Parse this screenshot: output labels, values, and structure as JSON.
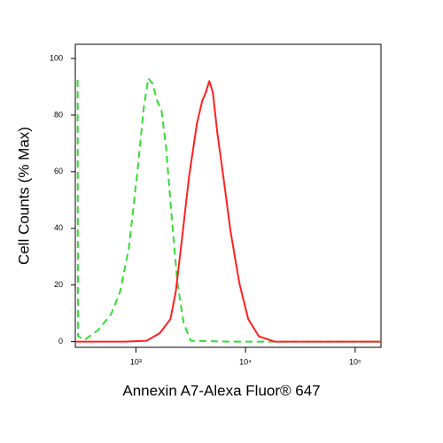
{
  "chart_data": {
    "type": "line",
    "x_label": "Annexin A7-Alexa Fluor® 647",
    "y_label": "Cell Counts (% Max)",
    "x_scale": "log",
    "xlim": [
      280,
      172000
    ],
    "ylim": [
      -2,
      105
    ],
    "xticks": [
      {
        "value": 1000,
        "label": "10³"
      },
      {
        "value": 10000,
        "label": "10⁴"
      },
      {
        "value": 100000,
        "label": "10⁵"
      }
    ],
    "yticks": [
      0,
      20,
      40,
      60,
      80,
      100
    ],
    "series": [
      {
        "color": "#33dd33",
        "dashed": true,
        "x": [
          294,
          296,
          340,
          450,
          594,
          716,
          862,
          1038,
          1182,
          1297,
          1423,
          1562,
          1714,
          1880,
          2103,
          2394,
          2724,
          3162,
          7300,
          172000
        ],
        "values": [
          92.5,
          1.9,
          0.6,
          4,
          9.7,
          17.5,
          33,
          61,
          83,
          93,
          91,
          85,
          81.5,
          69,
          45.6,
          20.6,
          6.6,
          0.3,
          0,
          0
        ]
      },
      {
        "color": "#ff2020",
        "dashed": false,
        "x": [
          280,
          785,
          1250,
          1652,
          2066,
          2307,
          2626,
          3046,
          3600,
          4024,
          4338,
          4669,
          5032,
          5520,
          6288,
          7295,
          8790,
          10570,
          13210,
          18450,
          172000
        ],
        "values": [
          0,
          0,
          0.3,
          3,
          8,
          17.5,
          36,
          58,
          77,
          85,
          88,
          92,
          88,
          74,
          58,
          39,
          20.6,
          8,
          1.9,
          0,
          0
        ]
      }
    ]
  }
}
